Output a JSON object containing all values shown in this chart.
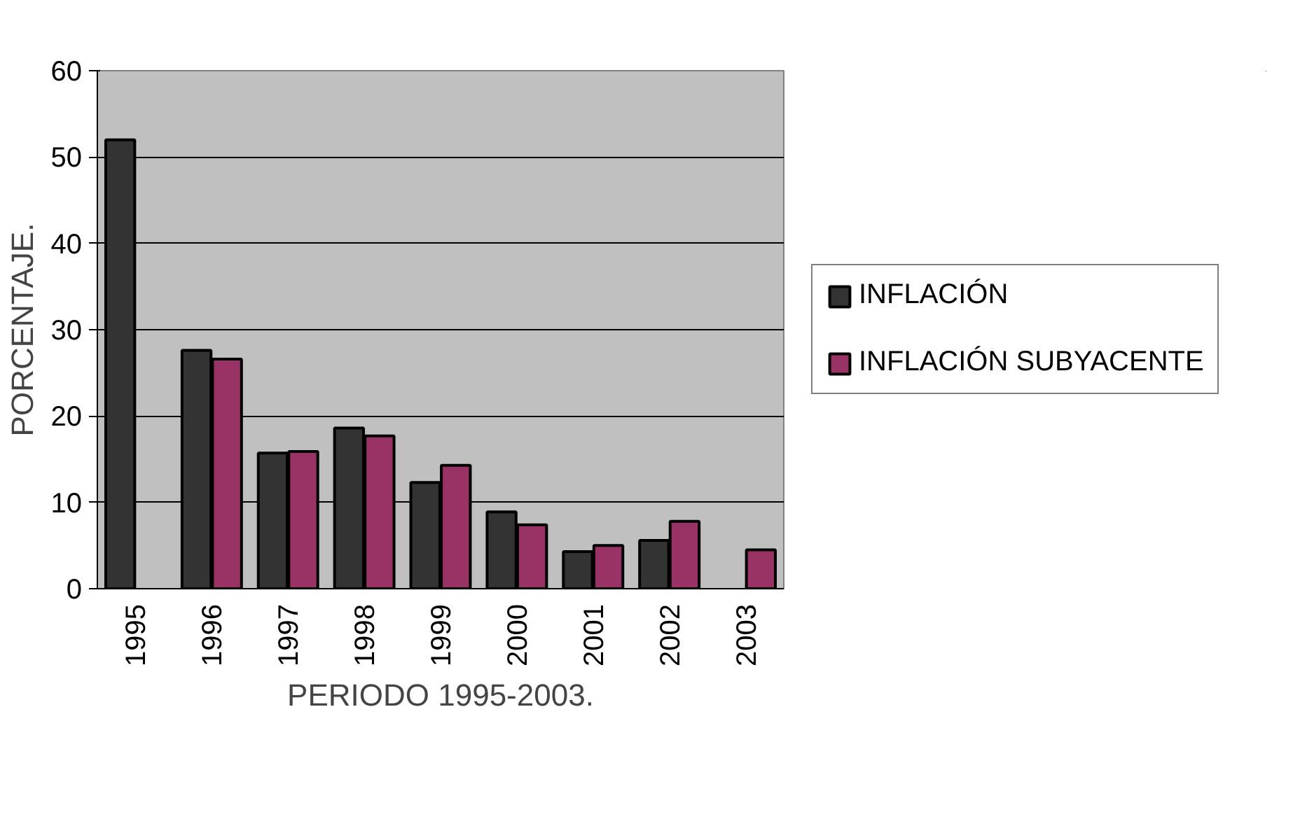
{
  "chart_data": {
    "type": "bar",
    "xlabel": "PERIODO 1995-2003.",
    "ylabel": "PORCENTAJE.",
    "categories": [
      "1995",
      "1996",
      "1997",
      "1998",
      "1999",
      "2000",
      "2001",
      "2002",
      "2003"
    ],
    "series": [
      {
        "name": "INFLACIÓN",
        "color": "#333333",
        "values": [
          52.0,
          27.6,
          15.7,
          18.6,
          12.3,
          8.9,
          4.3,
          5.6,
          null
        ]
      },
      {
        "name": "INFLACIÓN SUBYACENTE",
        "color": "#993366",
        "values": [
          null,
          26.6,
          15.9,
          17.7,
          14.3,
          7.4,
          5.0,
          7.8,
          4.5
        ]
      }
    ],
    "ylim": [
      0,
      60
    ],
    "yticks": [
      0,
      10,
      20,
      30,
      40,
      50,
      60
    ],
    "grid": "y",
    "legend": "right"
  }
}
